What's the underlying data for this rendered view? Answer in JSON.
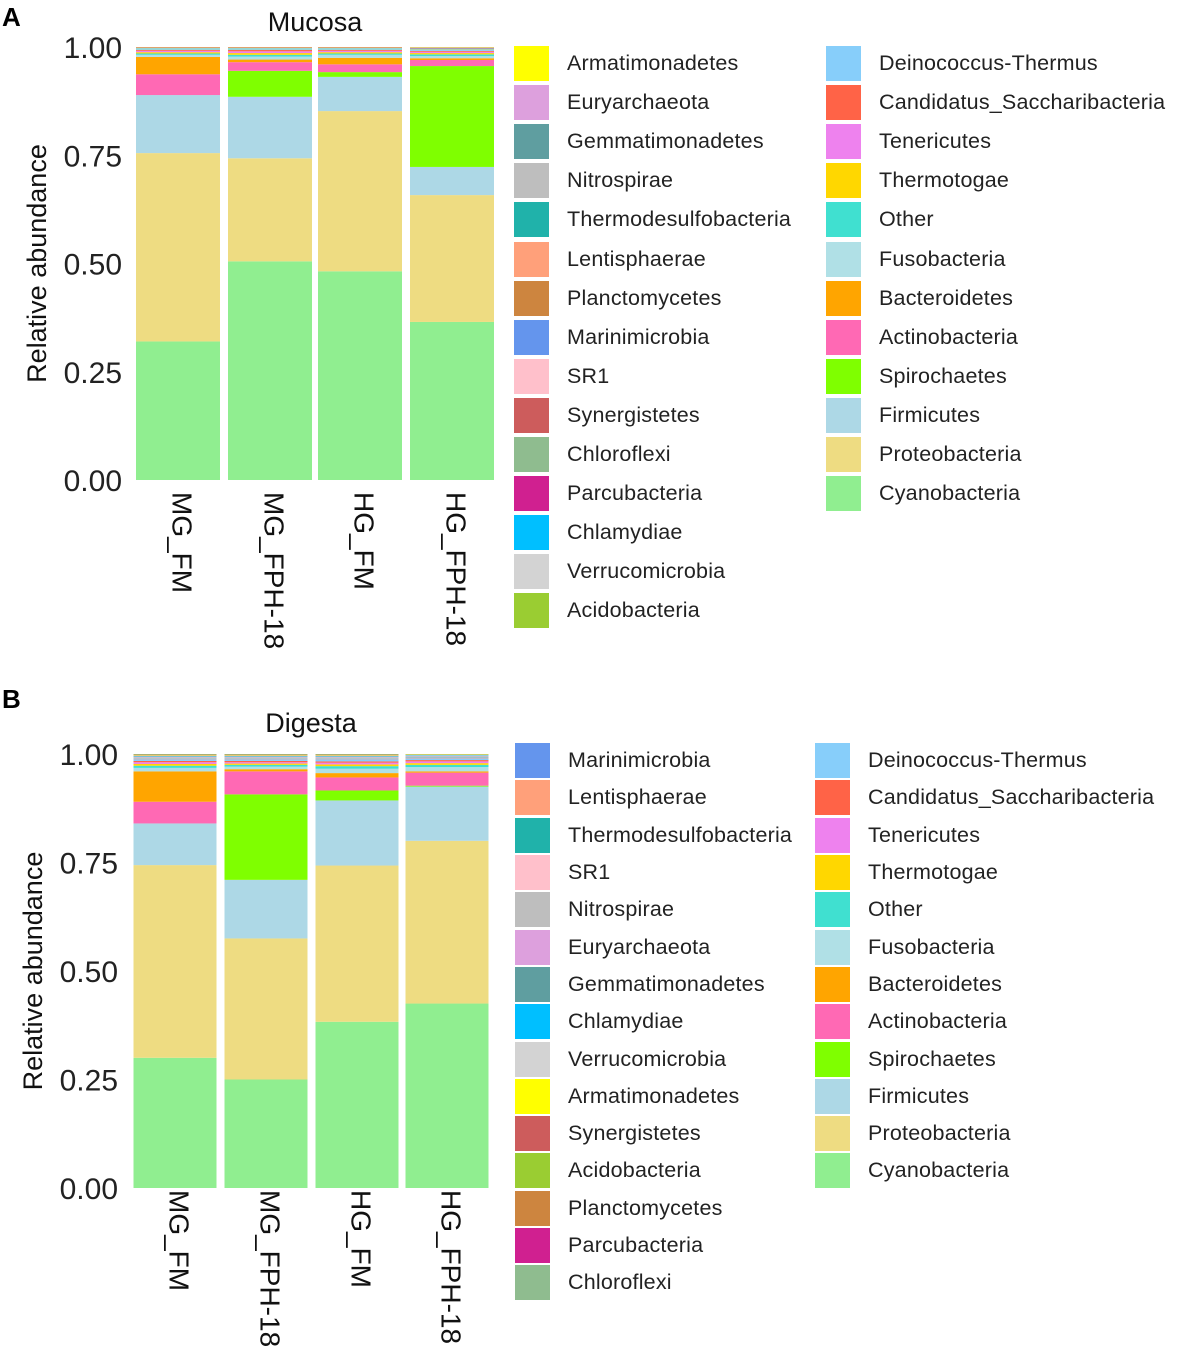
{
  "colors": {
    "Cyanobacteria": "#90EE90",
    "Proteobacteria": "#EEDC82",
    "Firmicutes": "#ADD8E6",
    "Spirochaetes": "#7FFF00",
    "Actinobacteria": "#FF69B4",
    "Bacteroidetes": "#FFA500",
    "Fusobacteria": "#B0E0E6",
    "Other": "#40E0D0",
    "Thermotogae": "#FFD700",
    "Tenericutes": "#EE82EE",
    "Candidatus_Saccharibacteria": "#FF6347",
    "Deinococcus-Thermus": "#87CEFA",
    "Acidobacteria": "#9ACD32",
    "Verrucomicrobia": "#D3D3D3",
    "Chlamydiae": "#00BFFF",
    "Parcubacteria": "#D02090",
    "Chloroflexi": "#8FBC8F",
    "Synergistetes": "#CD5C5C",
    "SR1": "#FFC0CB",
    "Marinimicrobia": "#6495ED",
    "Planctomycetes": "#CD853F",
    "Lentisphaerae": "#FFA07A",
    "Thermodesulfobacteria": "#20B2AA",
    "Nitrospirae": "#BEBEBE",
    "Gemmatimonadetes": "#5F9EA0",
    "Euryarchaeota": "#DDA0DD",
    "Armatimonadetes": "#FFFF00"
  },
  "chart_data": [
    {
      "type": "bar",
      "stacked": true,
      "panel_label": "A",
      "title": "Mucosa",
      "xlabel": "",
      "ylabel": "Relative abundance",
      "ylim": [
        0,
        1
      ],
      "yticks": [
        "0.00",
        "0.25",
        "0.50",
        "0.75",
        "1.00"
      ],
      "categories": [
        "MG_FM",
        "MG_FPH-18",
        "HG_FM",
        "HG_FPH-18"
      ],
      "series": [
        {
          "name": "Cyanobacteria",
          "values": [
            0.32,
            0.505,
            0.482,
            0.365
          ]
        },
        {
          "name": "Proteobacteria",
          "values": [
            0.435,
            0.238,
            0.37,
            0.293
          ]
        },
        {
          "name": "Firmicutes",
          "values": [
            0.134,
            0.142,
            0.079,
            0.065
          ]
        },
        {
          "name": "Spirochaetes",
          "values": [
            0.0,
            0.06,
            0.011,
            0.233
          ]
        },
        {
          "name": "Actinobacteria",
          "values": [
            0.048,
            0.02,
            0.018,
            0.014
          ]
        },
        {
          "name": "Bacteroidetes",
          "values": [
            0.04,
            0.006,
            0.015,
            0.004
          ]
        },
        {
          "name": "Fusobacteria",
          "values": [
            0.005,
            0.007,
            0.007,
            0.005
          ]
        },
        {
          "name": "Other",
          "values": [
            0.003,
            0.004,
            0.003,
            0.004
          ]
        },
        {
          "name": "Thermotogae",
          "values": [
            0.003,
            0.004,
            0.003,
            0.003
          ]
        },
        {
          "name": "Tenericutes",
          "values": [
            0.003,
            0.004,
            0.003,
            0.003
          ]
        },
        {
          "name": "Candidatus_Saccharibacteria",
          "values": [
            0.002,
            0.003,
            0.002,
            0.002
          ]
        },
        {
          "name": "Deinococcus-Thermus",
          "values": [
            0.002,
            0.002,
            0.002,
            0.002
          ]
        },
        {
          "name": "Acidobacteria",
          "values": [
            0.001,
            0.001,
            0.001,
            0.001
          ]
        },
        {
          "name": "Verrucomicrobia",
          "values": [
            0.001,
            0.001,
            0.001,
            0.001
          ]
        },
        {
          "name": "Chlamydiae",
          "values": [
            0.001,
            0.001,
            0.001,
            0.001
          ]
        },
        {
          "name": "Parcubacteria",
          "values": [
            0.001,
            0.001,
            0.001,
            0.001
          ]
        },
        {
          "name": "Chloroflexi",
          "values": [
            0.001,
            0.001,
            0.001,
            0.001
          ]
        },
        {
          "name": "Synergistetes",
          "values": [
            0.0005,
            0.0005,
            0.0005,
            0.0005
          ]
        },
        {
          "name": "SR1",
          "values": [
            0.0005,
            0.0005,
            0.0005,
            0.0005
          ]
        },
        {
          "name": "Marinimicrobia",
          "values": [
            0.0005,
            0.0005,
            0.0005,
            0.0005
          ]
        },
        {
          "name": "Planctomycetes",
          "values": [
            0.0005,
            0.0005,
            0.0005,
            0.0005
          ]
        },
        {
          "name": "Lentisphaerae",
          "values": [
            0.0005,
            0.0005,
            0.0005,
            0.0005
          ]
        },
        {
          "name": "Thermodesulfobacteria",
          "values": [
            0.0005,
            0.0005,
            0.0005,
            0.0005
          ]
        },
        {
          "name": "Nitrospirae",
          "values": [
            0.0005,
            0.0005,
            0.0005,
            0.0005
          ]
        },
        {
          "name": "Gemmatimonadetes",
          "values": [
            0.0005,
            0.0005,
            0.0005,
            0.0005
          ]
        },
        {
          "name": "Euryarchaeota",
          "values": [
            0.0005,
            0.0005,
            0.0005,
            0.0005
          ]
        },
        {
          "name": "Armatimonadetes",
          "values": [
            0.0005,
            0.0005,
            0.0005,
            0.0005
          ]
        }
      ],
      "legend": [
        [
          "Armatimonadetes",
          "Euryarchaeota",
          "Gemmatimonadetes",
          "Nitrospirae",
          "Thermodesulfobacteria",
          "Lentisphaerae",
          "Planctomycetes",
          "Marinimicrobia",
          "SR1",
          "Synergistetes",
          "Chloroflexi",
          "Parcubacteria",
          "Chlamydiae",
          "Verrucomicrobia",
          "Acidobacteria"
        ],
        [
          "Deinococcus-Thermus",
          "Candidatus_Saccharibacteria",
          "Tenericutes",
          "Thermotogae",
          "Other",
          "Fusobacteria",
          "Bacteroidetes",
          "Actinobacteria",
          "Spirochaetes",
          "Firmicutes",
          "Proteobacteria",
          "Cyanobacteria"
        ]
      ]
    },
    {
      "type": "bar",
      "stacked": true,
      "panel_label": "B",
      "title": "Digesta",
      "xlabel": "",
      "ylabel": "Relative abundance",
      "ylim": [
        0,
        1
      ],
      "yticks": [
        "0.00",
        "0.25",
        "0.50",
        "0.75",
        "1.00"
      ],
      "categories": [
        "MG_FM",
        "MG_FPH-18",
        "HG_FM",
        "HG_FPH-18"
      ],
      "series": [
        {
          "name": "Cyanobacteria",
          "values": [
            0.3,
            0.25,
            0.383,
            0.425
          ]
        },
        {
          "name": "Proteobacteria",
          "values": [
            0.444,
            0.325,
            0.36,
            0.375
          ]
        },
        {
          "name": "Firmicutes",
          "values": [
            0.096,
            0.135,
            0.15,
            0.125
          ]
        },
        {
          "name": "Spirochaetes",
          "values": [
            0.0,
            0.197,
            0.023,
            0.002
          ]
        },
        {
          "name": "Actinobacteria",
          "values": [
            0.05,
            0.053,
            0.03,
            0.03
          ]
        },
        {
          "name": "Bacteroidetes",
          "values": [
            0.07,
            0.005,
            0.01,
            0.003
          ]
        },
        {
          "name": "Fusobacteria",
          "values": [
            0.008,
            0.006,
            0.01,
            0.01
          ]
        },
        {
          "name": "Other",
          "values": [
            0.005,
            0.004,
            0.006,
            0.005
          ]
        },
        {
          "name": "Thermotogae",
          "values": [
            0.004,
            0.003,
            0.004,
            0.004
          ]
        },
        {
          "name": "Tenericutes",
          "values": [
            0.004,
            0.003,
            0.004,
            0.004
          ]
        },
        {
          "name": "Candidatus_Saccharibacteria",
          "values": [
            0.003,
            0.003,
            0.003,
            0.003
          ]
        },
        {
          "name": "Deinococcus-Thermus",
          "values": [
            0.003,
            0.003,
            0.004,
            0.003
          ]
        },
        {
          "name": "Marinimicrobia",
          "values": [
            0.001,
            0.001,
            0.001,
            0.001
          ]
        },
        {
          "name": "Lentisphaerae",
          "values": [
            0.001,
            0.001,
            0.001,
            0.001
          ]
        },
        {
          "name": "Thermodesulfobacteria",
          "values": [
            0.001,
            0.001,
            0.001,
            0.001
          ]
        },
        {
          "name": "SR1",
          "values": [
            0.001,
            0.001,
            0.001,
            0.001
          ]
        },
        {
          "name": "Nitrospirae",
          "values": [
            0.001,
            0.001,
            0.001,
            0.001
          ]
        },
        {
          "name": "Euryarchaeota",
          "values": [
            0.001,
            0.001,
            0.001,
            0.001
          ]
        },
        {
          "name": "Gemmatimonadetes",
          "values": [
            0.001,
            0.001,
            0.001,
            0.001
          ]
        },
        {
          "name": "Chlamydiae",
          "values": [
            0.001,
            0.001,
            0.001,
            0.001
          ]
        },
        {
          "name": "Verrucomicrobia",
          "values": [
            0.001,
            0.001,
            0.001,
            0.001
          ]
        },
        {
          "name": "Armatimonadetes",
          "values": [
            0.001,
            0.001,
            0.001,
            0.001
          ]
        },
        {
          "name": "Synergistetes",
          "values": [
            0.001,
            0.001,
            0.001,
            0.001
          ]
        },
        {
          "name": "Acidobacteria",
          "values": [
            0.001,
            0.001,
            0.001,
            0.001
          ]
        },
        {
          "name": "Planctomycetes",
          "values": [
            0.0005,
            0.0005,
            0.0005,
            0.0005
          ]
        },
        {
          "name": "Parcubacteria",
          "values": [
            0.0005,
            0.0005,
            0.0005,
            0.0005
          ]
        },
        {
          "name": "Chloroflexi",
          "values": [
            0.0005,
            0.0005,
            0.0005,
            0.0005
          ]
        }
      ],
      "legend": [
        [
          "Marinimicrobia",
          "Lentisphaerae",
          "Thermodesulfobacteria",
          "SR1",
          "Nitrospirae",
          "Euryarchaeota",
          "Gemmatimonadetes",
          "Chlamydiae",
          "Verrucomicrobia",
          "Armatimonadetes",
          "Synergistetes",
          "Acidobacteria",
          "Planctomycetes",
          "Parcubacteria",
          "Chloroflexi"
        ],
        [
          "Deinococcus-Thermus",
          "Candidatus_Saccharibacteria",
          "Tenericutes",
          "Thermotogae",
          "Other",
          "Fusobacteria",
          "Bacteroidetes",
          "Actinobacteria",
          "Spirochaetes",
          "Firmicutes",
          "Proteobacteria",
          "Cyanobacteria"
        ]
      ]
    }
  ]
}
